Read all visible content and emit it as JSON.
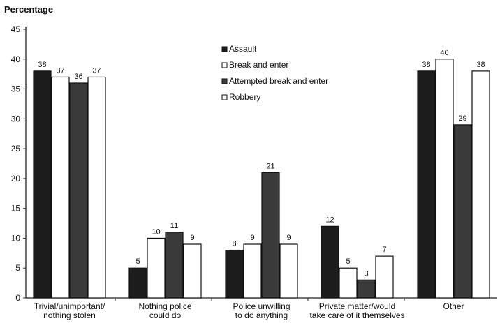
{
  "chart_data": {
    "type": "bar",
    "title": "",
    "xlabel": "",
    "ylabel": "Percentage",
    "ylim": [
      0,
      45
    ],
    "yticks": [
      0,
      5,
      10,
      15,
      20,
      25,
      30,
      35,
      40,
      45
    ],
    "grid": false,
    "legend_position": "top-center",
    "categories": [
      [
        "Trivial/unimportant/",
        "nothing stolen"
      ],
      [
        "Nothing police",
        "could do"
      ],
      [
        "Police unwilling",
        "to do anything"
      ],
      [
        "Private matter/would",
        "take care of it themselves"
      ],
      [
        "Other"
      ]
    ],
    "series": [
      {
        "name": "Assault",
        "values": [
          38,
          5,
          8,
          12,
          38
        ],
        "color": "#1c1c1c"
      },
      {
        "name": "Break and enter",
        "values": [
          37,
          10,
          9,
          5,
          40
        ],
        "color": "#ffffff"
      },
      {
        "name": "Attempted break and enter",
        "values": [
          36,
          11,
          21,
          3,
          29
        ],
        "color": "#3a3a3a"
      },
      {
        "name": "Robbery",
        "values": [
          37,
          9,
          9,
          7,
          38
        ],
        "color": "#ffffff"
      }
    ]
  }
}
